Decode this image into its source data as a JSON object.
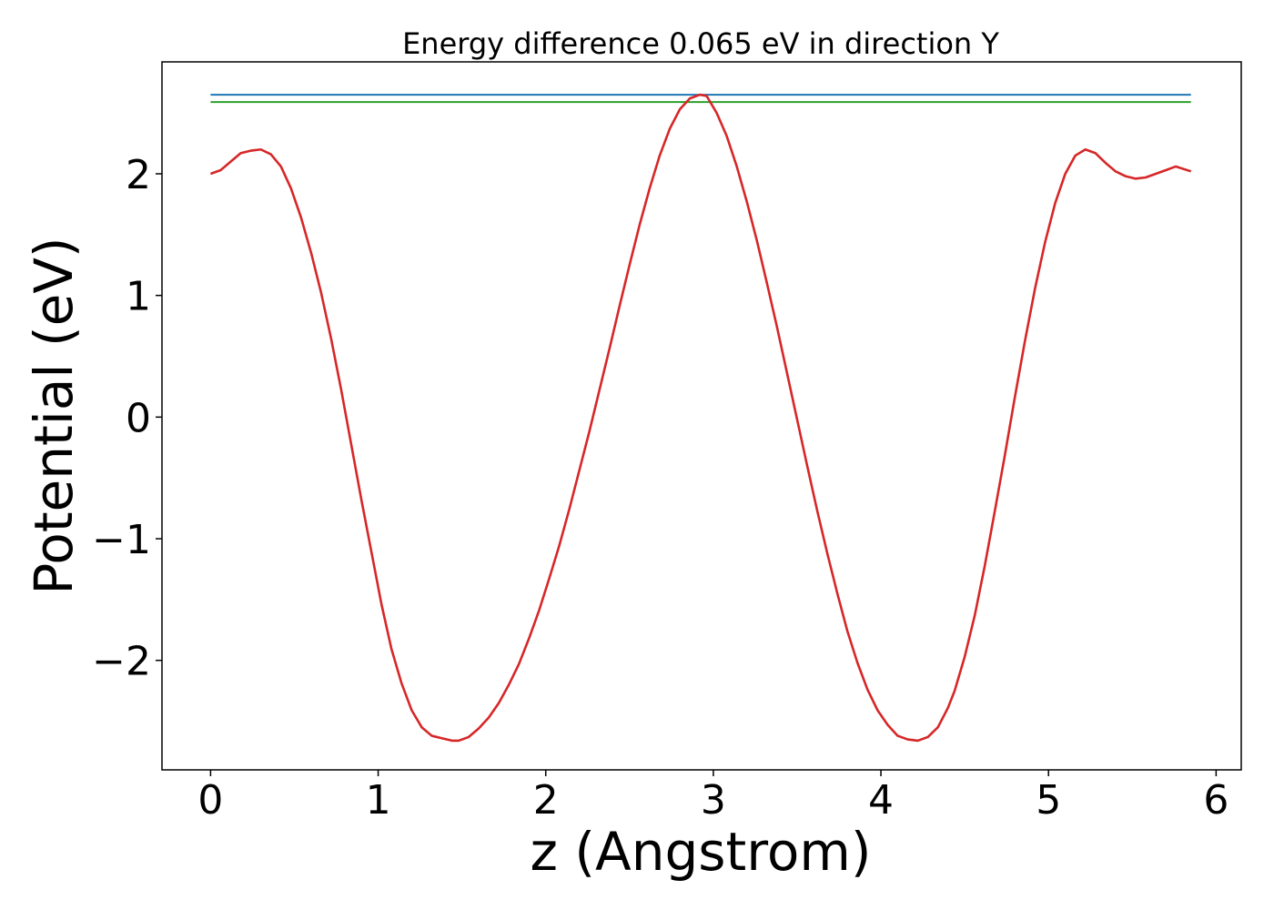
{
  "chart_data": {
    "type": "line",
    "title": "Energy difference 0.065 eV in direction Y",
    "xlabel": "z (Angstrom)",
    "ylabel": "Potential (eV)",
    "xlim": [
      -0.29,
      6.15
    ],
    "ylim": [
      -2.9,
      2.92
    ],
    "xticks": [
      0,
      1,
      2,
      3,
      4,
      5,
      6
    ],
    "xtick_labels": [
      "0",
      "1",
      "2",
      "3",
      "4",
      "5",
      "6"
    ],
    "yticks": [
      -2,
      -1,
      0,
      1,
      2
    ],
    "ytick_labels": [
      "−2",
      "−1",
      "0",
      "1",
      "2"
    ],
    "grid": false,
    "series": [
      {
        "color": "#1f77b4",
        "x": [
          0,
          5.85
        ],
        "y": [
          2.65,
          2.65
        ]
      },
      {
        "color": "#2ca02c",
        "x": [
          0,
          5.85
        ],
        "y": [
          2.59,
          2.59
        ]
      },
      {
        "color": "#d62728",
        "x": [
          0,
          0.06,
          0.12,
          0.18,
          0.24,
          0.3,
          0.36,
          0.42,
          0.48,
          0.54,
          0.6,
          0.66,
          0.72,
          0.78,
          0.84,
          0.9,
          0.96,
          1.02,
          1.08,
          1.14,
          1.2,
          1.26,
          1.32,
          1.38,
          1.44,
          1.48,
          1.54,
          1.6,
          1.66,
          1.72,
          1.78,
          1.84,
          1.9,
          1.96,
          2.02,
          2.08,
          2.14,
          2.2,
          2.26,
          2.32,
          2.38,
          2.44,
          2.5,
          2.56,
          2.62,
          2.68,
          2.74,
          2.8,
          2.86,
          2.92,
          2.96,
          3.02,
          3.08,
          3.14,
          3.2,
          3.26,
          3.32,
          3.38,
          3.44,
          3.5,
          3.56,
          3.62,
          3.68,
          3.74,
          3.8,
          3.86,
          3.92,
          3.98,
          4.04,
          4.1,
          4.16,
          4.22,
          4.28,
          4.34,
          4.4,
          4.44,
          4.5,
          4.56,
          4.62,
          4.68,
          4.74,
          4.8,
          4.86,
          4.92,
          4.98,
          5.04,
          5.1,
          5.16,
          5.22,
          5.28,
          5.34,
          5.4,
          5.46,
          5.52,
          5.58,
          5.64,
          5.7,
          5.76,
          5.85
        ],
        "y": [
          2.0,
          2.03,
          2.1,
          2.17,
          2.19,
          2.2,
          2.16,
          2.06,
          1.88,
          1.64,
          1.35,
          1.02,
          0.64,
          0.22,
          -0.23,
          -0.68,
          -1.11,
          -1.54,
          -1.91,
          -2.19,
          -2.41,
          -2.55,
          -2.62,
          -2.64,
          -2.66,
          -2.66,
          -2.63,
          -2.56,
          -2.47,
          -2.35,
          -2.2,
          -2.03,
          -1.82,
          -1.59,
          -1.33,
          -1.06,
          -0.76,
          -0.44,
          -0.12,
          0.22,
          0.56,
          0.91,
          1.25,
          1.58,
          1.88,
          2.15,
          2.37,
          2.53,
          2.62,
          2.65,
          2.64,
          2.5,
          2.31,
          2.06,
          1.77,
          1.45,
          1.1,
          0.74,
          0.36,
          -0.02,
          -0.4,
          -0.77,
          -1.12,
          -1.45,
          -1.76,
          -2.02,
          -2.24,
          -2.41,
          -2.53,
          -2.62,
          -2.65,
          -2.66,
          -2.63,
          -2.55,
          -2.39,
          -2.25,
          -1.97,
          -1.63,
          -1.22,
          -0.77,
          -0.31,
          0.17,
          0.63,
          1.06,
          1.44,
          1.76,
          2.0,
          2.15,
          2.2,
          2.17,
          2.09,
          2.02,
          1.98,
          1.96,
          1.97,
          2.0,
          2.03,
          2.06,
          2.02
        ]
      }
    ]
  }
}
